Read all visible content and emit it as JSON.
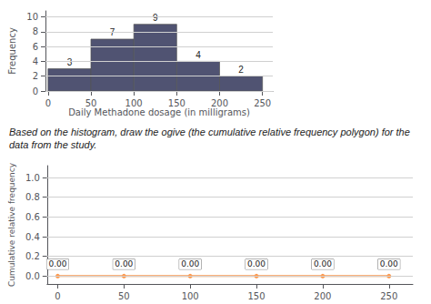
{
  "chart_data": [
    {
      "type": "histogram",
      "bins": [
        0,
        50,
        100,
        150,
        200,
        250
      ],
      "values": [
        3,
        7,
        9,
        4,
        2
      ],
      "xlabel": "Daily Methadone dosage (in milligrams)",
      "ylabel": "Frequency",
      "xlim": [
        -3,
        262
      ],
      "xticks": [
        0,
        50,
        100,
        150,
        200,
        250
      ],
      "ylim": [
        0,
        10.8
      ],
      "yticks": [
        0,
        2,
        4,
        6,
        8,
        10
      ],
      "grid": true,
      "data_labels": true
    },
    {
      "type": "line",
      "annotation": "Based on the histogram, draw the ogive (the cumulative relative frequency polygon) for the data from the study.",
      "x": [
        0,
        50,
        100,
        150,
        200,
        250
      ],
      "values": [
        0.0,
        0.0,
        0.0,
        0.0,
        0.0,
        0.0
      ],
      "value_labels": [
        "0.00",
        "0.00",
        "0.00",
        "0.00",
        "0.00",
        "0.00"
      ],
      "ylabel": "Cumulative relative frequency",
      "xlim": [
        -8,
        268
      ],
      "xticks": [
        0,
        50,
        100,
        150,
        200,
        250
      ],
      "ylim": [
        -0.08,
        1.12
      ],
      "yticks": [
        {
          "value": 0,
          "label": "0.0"
        },
        0.2,
        0.4,
        0.6,
        0.8,
        {
          "value": 1.0,
          "label": "1.0"
        }
      ],
      "grid": true,
      "data_labels": true
    }
  ]
}
